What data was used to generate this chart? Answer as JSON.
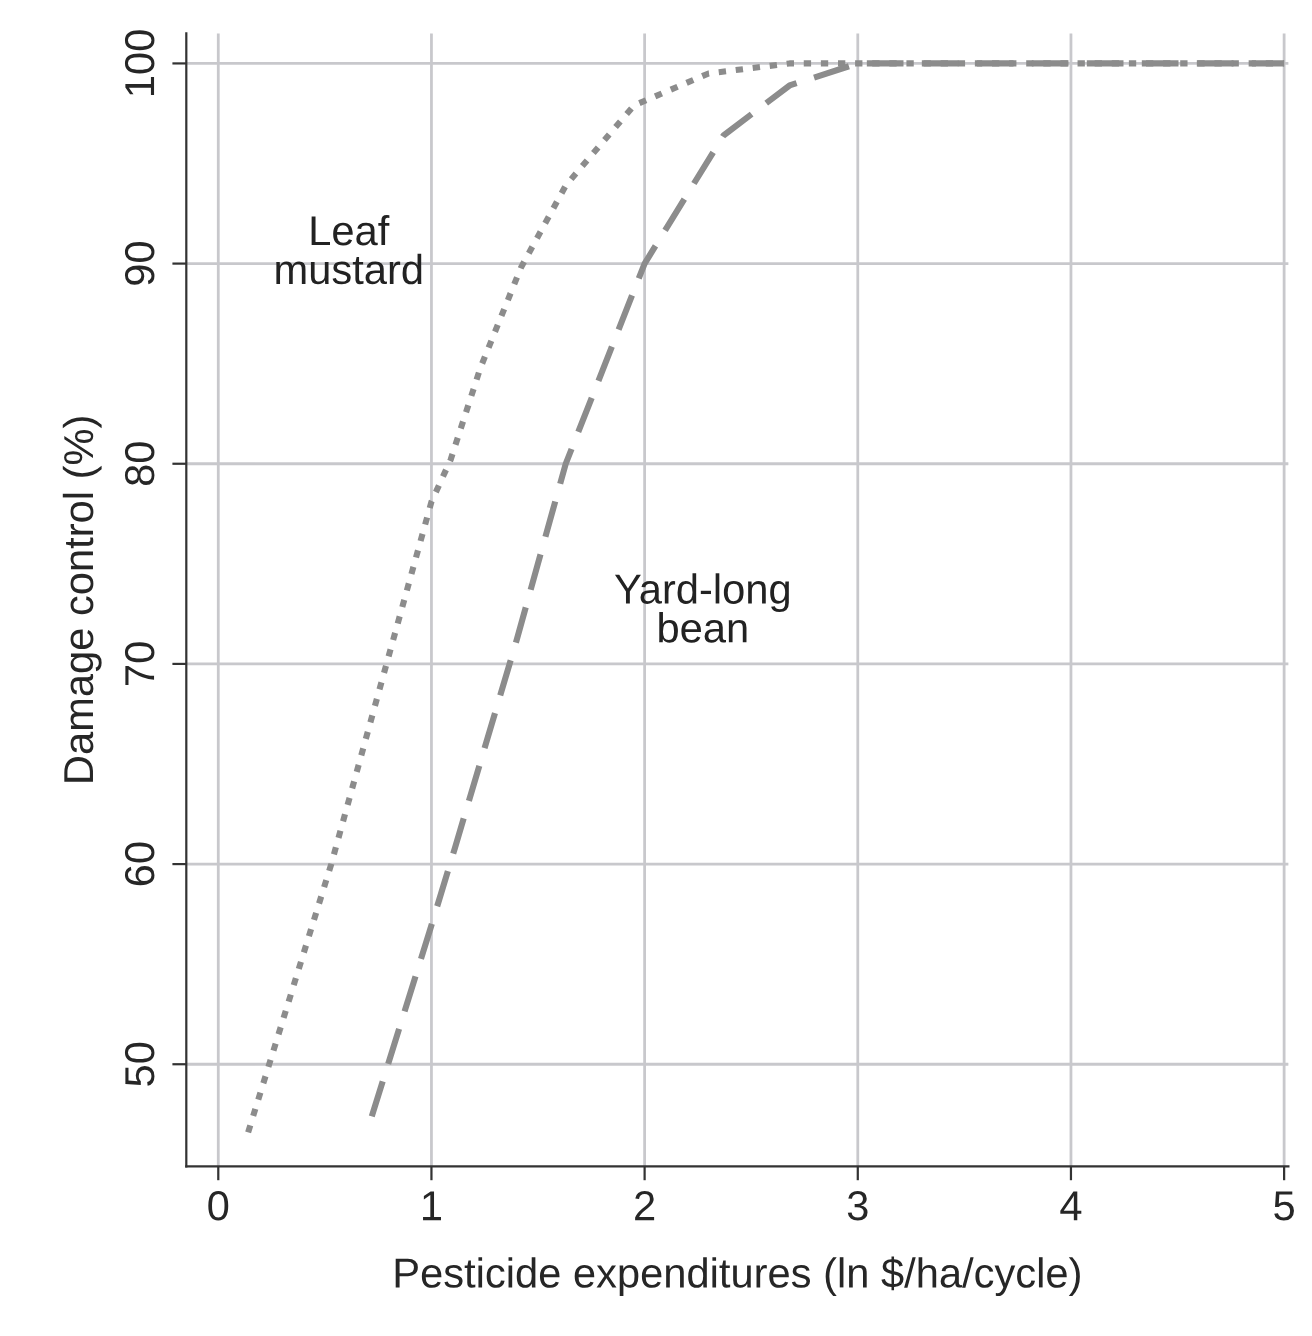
{
  "chart_data": {
    "type": "line",
    "xlabel": "Pesticide expenditures (ln $/ha/cycle)",
    "ylabel": "Damage control (%)",
    "xlim": [
      -0.15,
      5.02
    ],
    "ylim": [
      44.9,
      101.5
    ],
    "xticks": [
      0,
      1,
      2,
      3,
      4,
      5
    ],
    "yticks": [
      50,
      60,
      70,
      80,
      90,
      100
    ],
    "grid": true,
    "marker": "none",
    "series": [
      {
        "name": "Leaf\nmustard",
        "color": "#8c8c8c",
        "line_style": "dotted",
        "x": [
          0.14,
          0.53,
          0.81,
          1.0,
          1.09,
          1.23,
          1.42,
          1.63,
          1.95,
          2.3,
          2.68,
          3.0,
          4.0,
          5.0
        ],
        "values": [
          46.6,
          60.0,
          70.8,
          78.1,
          80.2,
          84.8,
          89.8,
          93.9,
          97.9,
          99.5,
          100,
          100,
          100,
          100
        ]
      },
      {
        "name": "Yard-long\nbean",
        "color": "#8c8c8c",
        "line_style": "dashed",
        "x": [
          0.72,
          0.99,
          1.11,
          1.4,
          1.63,
          2.0,
          2.37,
          2.68,
          3.0,
          4.0,
          5.0
        ],
        "values": [
          47.4,
          56.6,
          60.8,
          71.2,
          80.0,
          90.0,
          96.4,
          98.9,
          100,
          100,
          100
        ]
      }
    ]
  }
}
